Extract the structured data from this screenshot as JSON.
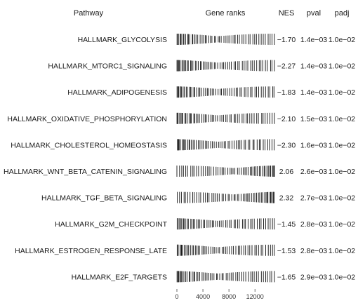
{
  "chart_data": {
    "type": "table",
    "headers": {
      "pathway": "Pathway",
      "gene_ranks": "Gene ranks",
      "nes": "NES",
      "pval": "pval",
      "padj": "padj"
    },
    "x_ticks": [
      0,
      4000,
      8000,
      12000
    ],
    "x_range": [
      0,
      15000
    ],
    "rows": [
      {
        "pathway": "HALLMARK_GLYCOLYSIS",
        "nes": "−1.70",
        "pval": "1.4e−03",
        "padj": "1.0e−02",
        "direction": "negative"
      },
      {
        "pathway": "HALLMARK_MTORC1_SIGNALING",
        "nes": "−2.27",
        "pval": "1.4e−03",
        "padj": "1.0e−02",
        "direction": "negative"
      },
      {
        "pathway": "HALLMARK_ADIPOGENESIS",
        "nes": "−1.83",
        "pval": "1.4e−03",
        "padj": "1.0e−02",
        "direction": "negative"
      },
      {
        "pathway": "HALLMARK_OXIDATIVE_PHOSPHORYLATION",
        "nes": "−2.10",
        "pval": "1.5e−03",
        "padj": "1.0e−02",
        "direction": "negative"
      },
      {
        "pathway": "HALLMARK_CHOLESTEROL_HOMEOSTASIS",
        "nes": "−2.30",
        "pval": "1.6e−03",
        "padj": "1.0e−02",
        "direction": "negative"
      },
      {
        "pathway": "HALLMARK_WNT_BETA_CATENIN_SIGNALING",
        "nes": "2.06",
        "pval": "2.6e−03",
        "padj": "1.0e−02",
        "direction": "positive"
      },
      {
        "pathway": "HALLMARK_TGF_BETA_SIGNALING",
        "nes": "2.32",
        "pval": "2.7e−03",
        "padj": "1.0e−02",
        "direction": "positive"
      },
      {
        "pathway": "HALLMARK_G2M_CHECKPOINT",
        "nes": "−1.45",
        "pval": "2.8e−03",
        "padj": "1.0e−02",
        "direction": "negative"
      },
      {
        "pathway": "HALLMARK_ESTROGEN_RESPONSE_LATE",
        "nes": "−1.53",
        "pval": "2.8e−03",
        "padj": "1.0e−02",
        "direction": "negative"
      },
      {
        "pathway": "HALLMARK_E2F_TARGETS",
        "nes": "−1.65",
        "pval": "2.9e−03",
        "padj": "1.0e−02",
        "direction": "negative"
      }
    ]
  }
}
